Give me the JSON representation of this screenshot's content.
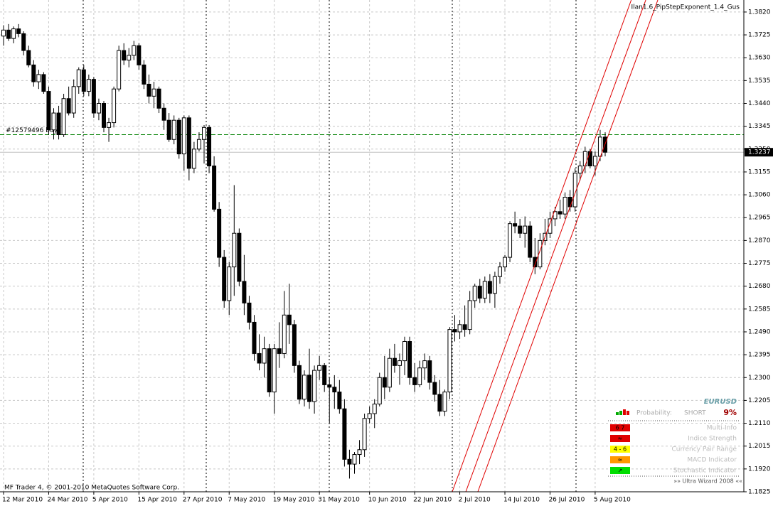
{
  "chart_data": {
    "type": "candlestick",
    "expert": "Ilan1.6_PipStepExponent_1.4_Gus",
    "footer": "MF Trader 4, © 2001-2010 MetaQuotes Software Corp.",
    "up_color": "#ffffff",
    "down_color": "#000000",
    "wick_color": "#000000",
    "ylim": [
      1.1825,
      1.387
    ],
    "yticks": [
      {
        "value": 1.382,
        "label": "1.3820"
      },
      1.3725,
      {
        "value": 1.363,
        "label": "1.3630"
      },
      1.3535,
      {
        "value": 1.344,
        "label": "1.3440"
      },
      1.3345,
      {
        "value": 1.325,
        "label": "1.3250"
      },
      1.3155,
      {
        "value": 1.306,
        "label": "1.3060"
      },
      1.2965,
      {
        "value": 1.287,
        "label": "1.2870"
      },
      1.2775,
      {
        "value": 1.268,
        "label": "1.2680"
      },
      1.2585,
      {
        "value": 1.249,
        "label": "1.2490"
      },
      1.2395,
      {
        "value": 1.23,
        "label": "1.2300"
      },
      1.2205,
      {
        "value": 1.211,
        "label": "1.2110"
      },
      1.2015,
      {
        "value": 1.192,
        "label": "1.1920"
      },
      1.1825
    ],
    "grid": true,
    "categories": [
      "12 Mar 2010",
      null,
      null,
      null,
      null,
      null,
      null,
      null,
      null,
      "24 Mar 2010",
      null,
      null,
      null,
      null,
      null,
      null,
      null,
      null,
      "5 Apr 2010",
      null,
      null,
      null,
      null,
      null,
      null,
      null,
      null,
      "15 Apr 2010",
      null,
      null,
      null,
      null,
      null,
      null,
      null,
      null,
      "27 Apr 2010",
      null,
      null,
      null,
      null,
      null,
      null,
      null,
      null,
      "7 May 2010",
      null,
      null,
      null,
      null,
      null,
      null,
      null,
      null,
      "19 May 2010",
      null,
      null,
      null,
      null,
      null,
      null,
      null,
      null,
      "31 May 2010",
      null,
      null,
      null,
      null,
      null,
      null,
      null,
      null,
      null,
      "10 Jun 2010",
      null,
      null,
      null,
      null,
      null,
      null,
      null,
      null,
      "22 Jun 2010",
      null,
      null,
      null,
      null,
      null,
      null,
      null,
      null,
      "2 Jul 2010",
      null,
      null,
      null,
      null,
      null,
      null,
      null,
      null,
      "14 Jul 2010",
      null,
      null,
      null,
      null,
      null,
      null,
      null,
      null,
      "26 Jul 2010",
      null,
      null,
      null,
      null,
      null,
      null,
      null,
      null,
      "5 Aug 2010",
      null,
      null
    ],
    "open": [
      1.372,
      1.3745,
      1.371,
      1.375,
      1.373,
      1.366,
      1.36,
      1.353,
      1.356,
      1.349,
      1.333,
      1.34,
      1.331,
      1.346,
      1.34,
      1.351,
      1.358,
      1.349,
      1.354,
      1.34,
      1.344,
      1.334,
      1.336,
      1.35,
      1.366,
      1.362,
      1.364,
      1.368,
      1.36,
      1.352,
      1.347,
      1.35,
      1.342,
      1.337,
      1.329,
      1.337,
      1.323,
      1.338,
      1.317,
      1.325,
      1.329,
      1.334,
      1.318,
      1.3,
      1.28,
      1.262,
      1.276,
      1.29,
      1.27,
      1.261,
      1.253,
      1.24,
      1.236,
      1.242,
      1.224,
      1.242,
      1.24,
      1.256,
      1.252,
      1.235,
      1.221,
      1.231,
      1.22,
      1.233,
      1.235,
      1.227,
      1.226,
      1.224,
      1.217,
      1.196,
      1.194,
      1.198,
      1.2,
      1.213,
      1.215,
      1.219,
      1.23,
      1.226,
      1.238,
      1.235,
      1.237,
      1.245,
      1.23,
      1.227,
      1.234,
      1.237,
      1.228,
      1.223,
      1.216,
      1.224,
      1.25,
      1.249,
      1.252,
      1.25,
      1.262,
      1.268,
      1.263,
      1.27,
      1.265,
      1.272,
      1.276,
      1.28,
      1.294,
      1.293,
      1.29,
      1.293,
      1.28,
      1.276,
      1.287,
      1.29,
      1.296,
      1.299,
      1.298,
      1.305,
      1.301,
      1.315,
      1.318,
      1.324,
      1.318,
      1.322,
      1.33
    ],
    "high": [
      1.3765,
      1.377,
      1.376,
      1.377,
      1.374,
      1.368,
      1.362,
      1.358,
      1.357,
      1.351,
      1.342,
      1.343,
      1.348,
      1.351,
      1.354,
      1.359,
      1.36,
      1.356,
      1.355,
      1.346,
      1.345,
      1.338,
      1.351,
      1.368,
      1.369,
      1.367,
      1.37,
      1.369,
      1.362,
      1.356,
      1.353,
      1.351,
      1.344,
      1.34,
      1.339,
      1.338,
      1.339,
      1.339,
      1.328,
      1.332,
      1.335,
      1.335,
      1.322,
      1.303,
      1.283,
      1.278,
      1.31,
      1.292,
      1.281,
      1.264,
      1.256,
      1.248,
      1.247,
      1.244,
      1.244,
      1.253,
      1.266,
      1.269,
      1.254,
      1.237,
      1.233,
      1.242,
      1.235,
      1.239,
      1.236,
      1.23,
      1.231,
      1.229,
      1.221,
      1.2,
      1.199,
      1.204,
      1.215,
      1.218,
      1.221,
      1.232,
      1.239,
      1.242,
      1.244,
      1.24,
      1.247,
      1.247,
      1.236,
      1.237,
      1.24,
      1.239,
      1.231,
      1.229,
      1.225,
      1.251,
      1.256,
      1.254,
      1.26,
      1.266,
      1.269,
      1.271,
      1.272,
      1.273,
      1.274,
      1.278,
      1.281,
      1.295,
      1.299,
      1.296,
      1.297,
      1.295,
      1.288,
      1.29,
      1.296,
      1.299,
      1.301,
      1.304,
      1.307,
      1.308,
      1.317,
      1.32,
      1.326,
      1.325,
      1.324,
      1.333,
      1.332
    ],
    "low": [
      1.368,
      1.37,
      1.369,
      1.3715,
      1.364,
      1.359,
      1.351,
      1.35,
      1.348,
      1.331,
      1.329,
      1.329,
      1.33,
      1.339,
      1.338,
      1.348,
      1.347,
      1.347,
      1.338,
      1.337,
      1.332,
      1.328,
      1.334,
      1.349,
      1.36,
      1.359,
      1.362,
      1.358,
      1.35,
      1.344,
      1.342,
      1.34,
      1.333,
      1.328,
      1.327,
      1.321,
      1.316,
      1.312,
      1.315,
      1.324,
      1.319,
      1.315,
      1.299,
      1.276,
      1.259,
      1.256,
      1.264,
      1.268,
      1.256,
      1.25,
      1.237,
      1.233,
      1.23,
      1.222,
      1.215,
      1.234,
      1.238,
      1.244,
      1.232,
      1.219,
      1.218,
      1.217,
      1.215,
      1.229,
      1.224,
      1.211,
      1.217,
      1.215,
      1.193,
      1.188,
      1.19,
      1.194,
      1.197,
      1.211,
      1.209,
      1.218,
      1.221,
      1.224,
      1.232,
      1.227,
      1.231,
      1.227,
      1.224,
      1.226,
      1.229,
      1.225,
      1.22,
      1.214,
      1.214,
      1.221,
      1.245,
      1.246,
      1.247,
      1.248,
      1.259,
      1.261,
      1.261,
      1.261,
      1.259,
      1.269,
      1.274,
      1.278,
      1.29,
      1.288,
      1.284,
      1.278,
      1.273,
      1.275,
      1.285,
      1.288,
      1.293,
      1.296,
      1.296,
      1.299,
      1.299,
      1.312,
      1.315,
      1.317,
      1.314,
      1.32,
      1.322
    ],
    "close": [
      1.3745,
      1.371,
      1.375,
      1.373,
      1.366,
      1.36,
      1.353,
      1.356,
      1.349,
      1.333,
      1.34,
      1.331,
      1.346,
      1.34,
      1.351,
      1.358,
      1.349,
      1.354,
      1.34,
      1.344,
      1.334,
      1.336,
      1.35,
      1.366,
      1.362,
      1.364,
      1.368,
      1.36,
      1.352,
      1.347,
      1.35,
      1.342,
      1.337,
      1.329,
      1.337,
      1.323,
      1.338,
      1.317,
      1.325,
      1.329,
      1.334,
      1.318,
      1.3,
      1.28,
      1.262,
      1.276,
      1.29,
      1.27,
      1.261,
      1.253,
      1.24,
      1.236,
      1.242,
      1.224,
      1.242,
      1.24,
      1.256,
      1.252,
      1.235,
      1.221,
      1.231,
      1.22,
      1.233,
      1.235,
      1.227,
      1.226,
      1.224,
      1.217,
      1.196,
      1.194,
      1.198,
      1.2,
      1.213,
      1.215,
      1.219,
      1.23,
      1.226,
      1.238,
      1.235,
      1.237,
      1.245,
      1.23,
      1.227,
      1.234,
      1.237,
      1.228,
      1.223,
      1.216,
      1.224,
      1.25,
      1.249,
      1.252,
      1.25,
      1.262,
      1.268,
      1.263,
      1.27,
      1.265,
      1.272,
      1.276,
      1.28,
      1.294,
      1.293,
      1.29,
      1.293,
      1.28,
      1.276,
      1.287,
      1.29,
      1.296,
      1.299,
      1.298,
      1.305,
      1.301,
      1.315,
      1.318,
      1.324,
      1.318,
      1.322,
      1.33,
      1.3237
    ],
    "order": {
      "label": "#12579496 buy",
      "price": 1.331,
      "color": "#008000"
    },
    "bid": 1.3237,
    "trendlines": [
      {
        "x": [
          89.5,
          125.2
        ],
        "y": [
          1.1825,
          1.387
        ],
        "color": "#e00000"
      },
      {
        "x": [
          92.2,
          128.1
        ],
        "y": [
          1.1825,
          1.387
        ],
        "color": "#e00000"
      },
      {
        "x": [
          94.6,
          130.5
        ],
        "y": [
          1.1825,
          1.387
        ],
        "color": "#e00000"
      }
    ]
  },
  "info_panel": {
    "symbol": "EURUSD",
    "probability_label": "Probability:",
    "direction": "SHORT",
    "probability": "9%",
    "rows": [
      {
        "badge": "6 7",
        "label": "Multi-Info",
        "color": "#e00000"
      },
      {
        "badge": "≈",
        "label": "Indice Strength",
        "color": "#e00000"
      },
      {
        "badge": "4 - 6",
        "label": "Currency Pair Range",
        "color": "#ffff00"
      },
      {
        "badge": "≈",
        "label": "MACD Indicator",
        "color": "#ff9900"
      },
      {
        "badge": "↗",
        "label": "Stochastic Indicator",
        "color": "#00dd00"
      }
    ],
    "footer": "»» Ultra Wizard 2008 ««"
  }
}
